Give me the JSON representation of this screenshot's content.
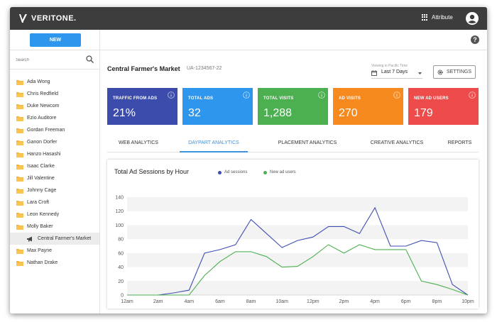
{
  "header": {
    "logo_text": "VERITONE.",
    "attribute_label": "Attribute"
  },
  "toolbar": {
    "new_label": "NEW"
  },
  "sidebar": {
    "search_placeholder": "Search",
    "items": [
      {
        "label": "Ada Wong"
      },
      {
        "label": "Chris Redfield"
      },
      {
        "label": "Duke Newcom"
      },
      {
        "label": "Ezio Auditore"
      },
      {
        "label": "Gordan Freeman"
      },
      {
        "label": "Ganon Dorfer"
      },
      {
        "label": "Hanzo Hasashi"
      },
      {
        "label": "Isaac Clarke"
      },
      {
        "label": "Jill Valentine"
      },
      {
        "label": "Johnny Cage"
      },
      {
        "label": "Lara Croft"
      },
      {
        "label": "Leon Kennedy"
      },
      {
        "label": "Molly Baker"
      },
      {
        "label": "Central Farmer's Market",
        "child": true
      },
      {
        "label": "Max Payne"
      },
      {
        "label": "Nathan Drake"
      }
    ]
  },
  "main": {
    "account_name": "Central Farmer's Market",
    "account_id": "UA-1234567-22",
    "viewing_label": "Viewing in Pacific Time",
    "date_range": "Last 7 Days",
    "settings_label": "SETTINGS"
  },
  "kpis": [
    {
      "label": "TRAFFIC FROM ADS",
      "value": "21%",
      "color": "#3b4cad"
    },
    {
      "label": "TOTAL ADS",
      "value": "32",
      "color": "#2e96ec"
    },
    {
      "label": "TOTAL VISITS",
      "value": "1,288",
      "color": "#4caf50"
    },
    {
      "label": "AD VISITS",
      "value": "270",
      "color": "#f78a1f"
    },
    {
      "label": "NEW AD USERS",
      "value": "179",
      "color": "#ee4b4b"
    }
  ],
  "tabs": [
    {
      "label": "WEB ANALYTICS"
    },
    {
      "label": "DAYPART ANALYTICS",
      "active": true
    },
    {
      "label": "PLACEMENT ANALYTICS"
    },
    {
      "label": "CREATIVE ANALYTICS"
    },
    {
      "label": "REPORTS"
    }
  ],
  "chart_data": {
    "type": "line",
    "title": "Total Ad Sessions by Hour",
    "xlabel": "",
    "ylabel": "",
    "x_ticks": [
      "12am",
      "2am",
      "4am",
      "6am",
      "8am",
      "10am",
      "12pm",
      "2pm",
      "4pm",
      "6pm",
      "8pm",
      "10pm"
    ],
    "ylim": [
      0,
      140
    ],
    "y_ticks": [
      0,
      20,
      40,
      60,
      80,
      100,
      120,
      140
    ],
    "grid": true,
    "legend": "top",
    "series": [
      {
        "name": "Ad sessions",
        "color": "#3f4db3",
        "values": [
          0,
          0,
          0,
          3,
          7,
          60,
          65,
          72,
          108,
          88,
          68,
          78,
          83,
          98,
          98,
          88,
          125,
          70,
          70,
          78,
          75,
          15,
          0
        ]
      },
      {
        "name": "New ad users",
        "color": "#4caf50",
        "values": [
          0,
          0,
          0,
          0,
          0,
          28,
          48,
          62,
          62,
          55,
          40,
          41,
          55,
          72,
          60,
          72,
          65,
          65,
          65,
          20,
          15,
          8,
          0
        ]
      }
    ]
  }
}
